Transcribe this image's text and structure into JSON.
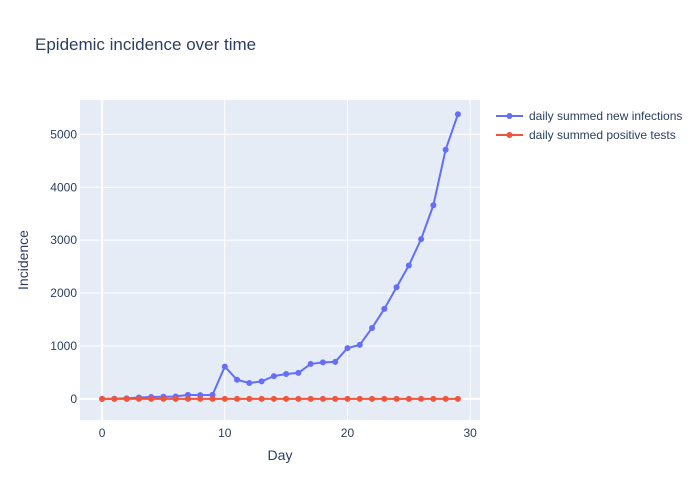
{
  "chart_data": {
    "type": "line",
    "title": "Epidemic incidence over time",
    "xlabel": "Day",
    "ylabel": "Incidence",
    "xlim": [
      -1.8,
      30.8
    ],
    "ylim": [
      -400,
      5650
    ],
    "x_ticks": [
      0,
      10,
      20,
      30
    ],
    "y_ticks": [
      0,
      1000,
      2000,
      3000,
      4000,
      5000
    ],
    "grid": true,
    "legend_position": "top-right, outside plot",
    "x": [
      0,
      1,
      2,
      3,
      4,
      5,
      6,
      7,
      8,
      9,
      10,
      11,
      12,
      13,
      14,
      15,
      16,
      17,
      18,
      19,
      20,
      21,
      22,
      23,
      24,
      25,
      26,
      27,
      28,
      29
    ],
    "series": [
      {
        "name": "daily summed new infections",
        "color": "#636efa",
        "values": [
          0,
          2,
          10,
          25,
          35,
          40,
          45,
          75,
          70,
          75,
          610,
          360,
          300,
          330,
          430,
          470,
          490,
          660,
          690,
          700,
          960,
          1020,
          1340,
          1700,
          2110,
          2520,
          3020,
          3660,
          4710,
          5380
        ]
      },
      {
        "name": "daily summed positive tests",
        "color": "#ef553b",
        "values": [
          0,
          0,
          0,
          0,
          0,
          0,
          0,
          0,
          0,
          0,
          0,
          0,
          0,
          0,
          0,
          0,
          0,
          0,
          0,
          0,
          0,
          0,
          0,
          0,
          0,
          0,
          0,
          0,
          0,
          0
        ]
      }
    ]
  }
}
